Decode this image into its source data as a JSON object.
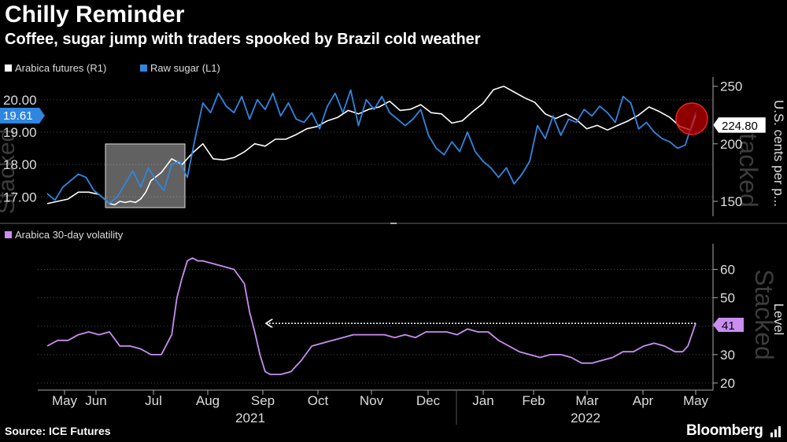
{
  "header": {
    "title": "Chilly Reminder",
    "subtitle": "Coffee, sugar jump with traders spooked by Brazil cold weather"
  },
  "footer": {
    "source": "Source: ICE Futures",
    "brand": "Bloomberg"
  },
  "colors": {
    "background": "#000000",
    "arabica": "#ffffff",
    "sugar": "#2f86e0",
    "volatility": "#c98ef0",
    "sugar_badge": "#2f86e0",
    "grid": "#555555"
  },
  "watermark": "Stacked",
  "chart_data": [
    {
      "type": "line",
      "legend": [
        {
          "name": "Arabica futures (R1)",
          "color": "#ffffff"
        },
        {
          "name": "Raw sugar (L1)",
          "color": "#2f86e0"
        }
      ],
      "left_axis": {
        "ylim": [
          16.4,
          20.7
        ],
        "ticks": [
          "17.00",
          "18.00",
          "19.00",
          "20.00"
        ],
        "tick_values": [
          17,
          18,
          19,
          20
        ]
      },
      "right_axis": {
        "label": "U.S. cents per p...",
        "ylim": [
          137,
          258
        ],
        "ticks": [
          "150",
          "200",
          "250"
        ],
        "tick_values": [
          150,
          200,
          250
        ]
      },
      "last_values": {
        "sugar": "19.61",
        "arabica": "224.80"
      },
      "series": [
        {
          "name": "Arabica futures (R1)",
          "axis": "right",
          "x": [
            0,
            0.4,
            0.8,
            1.2,
            1.6,
            2.0,
            2.2,
            2.4,
            2.6,
            2.8,
            3.0,
            3.2,
            3.4,
            3.6,
            3.8,
            4.0,
            4.4,
            4.8,
            5.2,
            5.6,
            6.0,
            6.4,
            6.8,
            7.2,
            7.6,
            8.0,
            8.4,
            8.8,
            9.2,
            9.6,
            10.0,
            10.4,
            10.8,
            11.2,
            11.6,
            12.0,
            12.4,
            12.8,
            13.2,
            13.6,
            14.0,
            14.4,
            14.8,
            15.2,
            15.6,
            16.0,
            16.4,
            16.8,
            17.2,
            17.6,
            18.0,
            18.4,
            18.8,
            19.2,
            19.6,
            20.0,
            20.4,
            20.8,
            21.2,
            21.6,
            22.0,
            22.4,
            22.8,
            23.2,
            23.6,
            24.0,
            24.4,
            24.8,
            25.0
          ],
          "values": [
            148,
            150,
            152,
            158,
            158,
            156,
            152,
            148,
            147,
            150,
            149,
            150,
            149,
            152,
            158,
            168,
            175,
            187,
            182,
            192,
            200,
            187,
            186,
            188,
            193,
            200,
            198,
            204,
            204,
            208,
            213,
            215,
            220,
            223,
            229,
            226,
            230,
            232,
            237,
            229,
            230,
            234,
            227,
            226,
            218,
            220,
            228,
            235,
            247,
            250,
            245,
            240,
            236,
            226,
            222,
            226,
            221,
            213,
            216,
            212,
            216,
            220,
            225,
            232,
            228,
            223,
            215,
            212,
            224.8
          ]
        },
        {
          "name": "Raw sugar (L1)",
          "axis": "left",
          "x": [
            0,
            0.3,
            0.6,
            0.9,
            1.2,
            1.5,
            1.8,
            2.1,
            2.4,
            2.7,
            3.0,
            3.3,
            3.6,
            3.9,
            4.2,
            4.5,
            4.8,
            5.1,
            5.4,
            5.7,
            6.0,
            6.3,
            6.6,
            6.9,
            7.2,
            7.5,
            7.8,
            8.1,
            8.4,
            8.7,
            9.0,
            9.3,
            9.6,
            9.9,
            10.2,
            10.5,
            10.8,
            11.1,
            11.4,
            11.7,
            12.0,
            12.3,
            12.6,
            12.9,
            13.2,
            13.5,
            13.8,
            14.1,
            14.4,
            14.7,
            15.0,
            15.3,
            15.6,
            15.9,
            16.2,
            16.5,
            16.8,
            17.1,
            17.4,
            17.7,
            18.0,
            18.3,
            18.6,
            18.9,
            19.2,
            19.5,
            19.8,
            20.1,
            20.4,
            20.7,
            21.0,
            21.3,
            21.6,
            21.9,
            22.2,
            22.5,
            22.8,
            23.1,
            23.4,
            23.7,
            24.0,
            24.3,
            24.6,
            25.0
          ],
          "values": [
            17.1,
            16.9,
            17.3,
            17.5,
            17.7,
            17.6,
            17.2,
            17.0,
            16.8,
            17.0,
            17.4,
            17.8,
            17.3,
            17.9,
            17.5,
            17.2,
            18.0,
            18.1,
            17.6,
            18.8,
            19.9,
            19.6,
            20.2,
            19.8,
            19.6,
            20.1,
            19.4,
            20.0,
            19.7,
            20.2,
            19.5,
            19.9,
            19.4,
            19.3,
            19.6,
            19.1,
            19.8,
            20.2,
            19.6,
            20.3,
            19.2,
            20.0,
            19.7,
            20.1,
            19.6,
            19.4,
            19.2,
            19.4,
            19.7,
            18.9,
            18.5,
            18.3,
            18.7,
            18.4,
            19.0,
            18.4,
            18.1,
            17.9,
            17.6,
            17.9,
            17.4,
            17.7,
            18.1,
            19.2,
            18.8,
            19.5,
            18.9,
            19.4,
            19.3,
            19.7,
            19.5,
            19.8,
            19.6,
            19.3,
            20.1,
            19.9,
            19.1,
            19.3,
            19.0,
            18.8,
            18.7,
            18.5,
            18.6,
            19.61
          ]
        }
      ]
    },
    {
      "type": "line",
      "legend": [
        {
          "name": "Arabica 30-day volatility",
          "color": "#c98ef0"
        }
      ],
      "right_axis": {
        "label": "Level",
        "ylim": [
          17.5,
          69
        ],
        "ticks": [
          "20",
          "30",
          "40",
          "50",
          "60"
        ],
        "tick_values": [
          20,
          30,
          40,
          50,
          60
        ]
      },
      "last_value": "41",
      "reference_level": 41,
      "series": [
        {
          "name": "Arabica 30-day volatility",
          "x": [
            0,
            0.4,
            0.8,
            1.2,
            1.6,
            2.0,
            2.4,
            2.8,
            3.2,
            3.6,
            4.0,
            4.4,
            4.8,
            5.0,
            5.2,
            5.4,
            5.6,
            5.8,
            6.0,
            6.4,
            6.8,
            7.2,
            7.6,
            7.8,
            8.0,
            8.2,
            8.4,
            8.6,
            8.8,
            9.0,
            9.4,
            9.8,
            10.2,
            10.6,
            11.0,
            11.4,
            11.8,
            12.2,
            12.6,
            13.0,
            13.4,
            13.8,
            14.2,
            14.6,
            15.0,
            15.4,
            15.8,
            16.2,
            16.6,
            17.0,
            17.4,
            17.8,
            18.2,
            18.6,
            19.0,
            19.4,
            19.8,
            20.2,
            20.6,
            21.0,
            21.4,
            21.8,
            22.2,
            22.6,
            23.0,
            23.4,
            23.8,
            24.2,
            24.5,
            24.7,
            25.0
          ],
          "values": [
            33,
            35,
            35,
            37,
            38,
            37,
            38,
            33,
            33,
            32,
            30,
            30,
            37,
            50,
            57,
            63,
            64,
            63,
            63,
            62,
            61,
            60,
            55,
            45,
            38,
            30,
            24,
            23,
            23,
            23,
            24,
            28,
            33,
            34,
            35,
            36,
            37,
            37,
            37,
            37,
            36,
            37,
            36,
            38,
            38,
            38,
            37,
            39,
            38,
            38,
            35,
            33,
            31,
            30,
            29,
            30,
            30,
            29,
            27,
            27,
            28,
            29,
            31,
            31,
            33,
            34,
            33,
            31,
            31,
            33,
            41
          ]
        }
      ]
    }
  ],
  "x_axis": {
    "months": [
      "May",
      "Jun",
      "Jul",
      "Aug",
      "Sep",
      "Oct",
      "Nov",
      "Dec",
      "Jan",
      "Feb",
      "Mar",
      "Apr",
      "May"
    ],
    "years": [
      "2021",
      "2022"
    ]
  }
}
